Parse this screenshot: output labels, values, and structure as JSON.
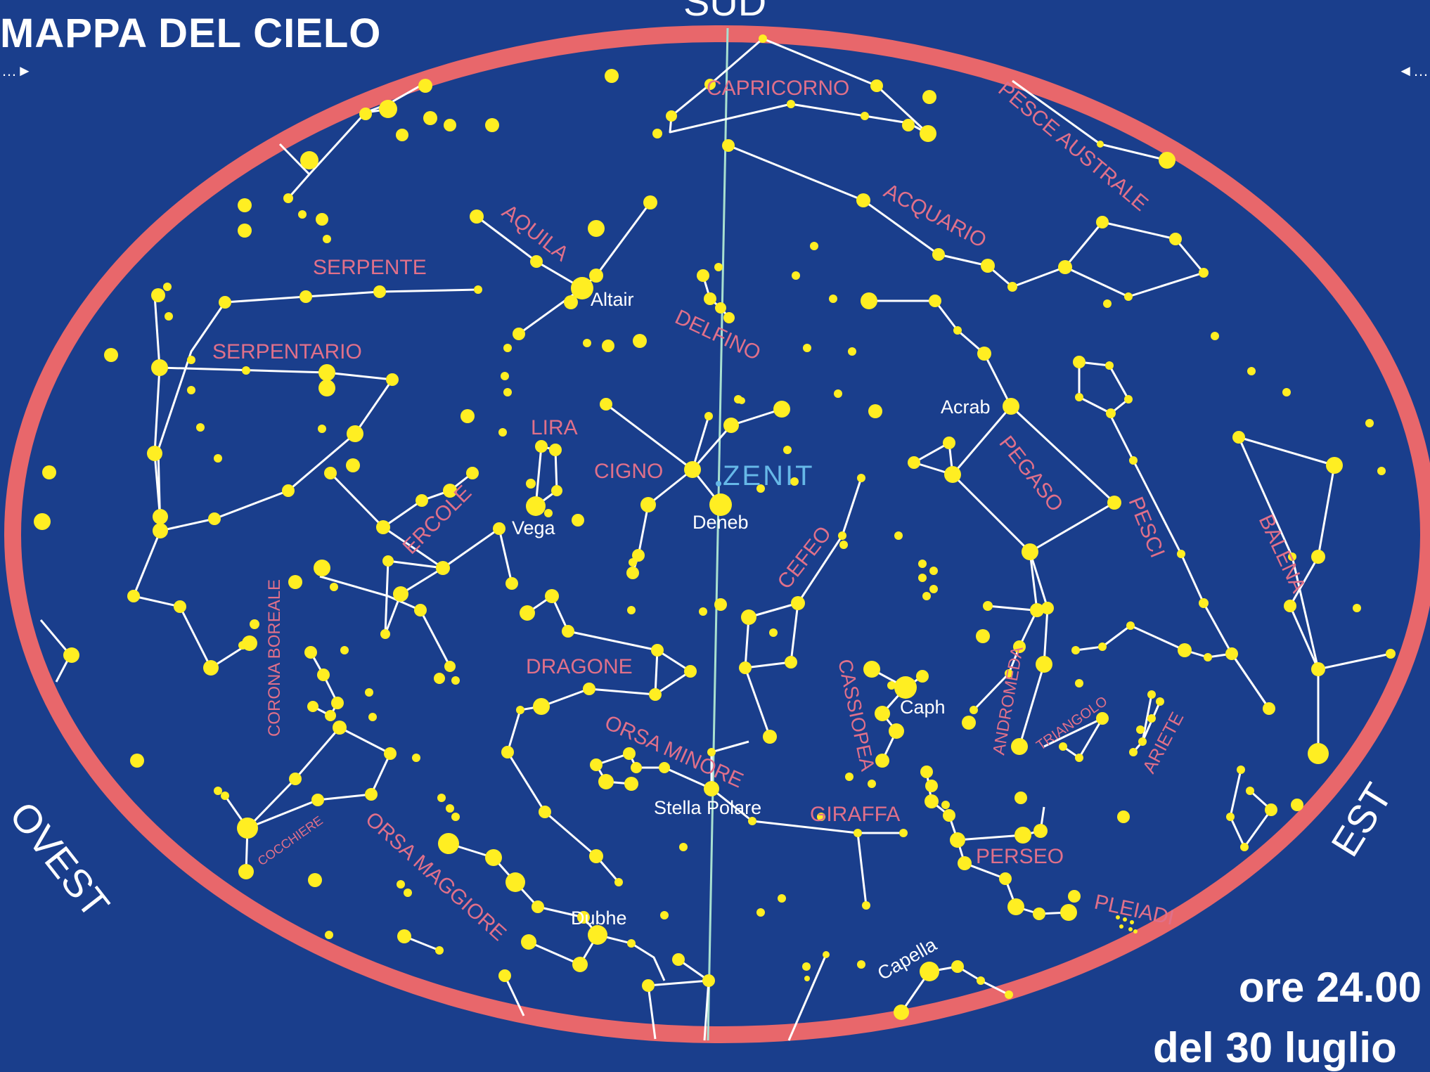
{
  "title": "MAPPA DEL CIELO",
  "directions": {
    "south": "SUD",
    "west": "OVEST",
    "east": "EST"
  },
  "time": "ore 24.00",
  "date": "del 30 luglio",
  "zenith_label": "ZENIT",
  "colors": {
    "background": "#1a3e8c",
    "horizon": "#e8676b",
    "stars": "#ffee22",
    "lines": "#ffffff",
    "constellation_labels": "#e0708a",
    "meridian": "#a8e0d0",
    "zenith": "#66b8e8"
  },
  "constellations": {
    "capricorno": "CAPRICORNO",
    "pesce_australe": "PESCE AUSTRALE",
    "acquario": "ACQUARIO",
    "aquila": "AQUILA",
    "serpente": "SERPENTE",
    "serpentario": "SERPENTARIO",
    "delfino": "DELFINO",
    "lira": "LIRA",
    "cigno": "CIGNO",
    "ercole": "ERCOLE",
    "pegaso": "PEGASO",
    "pesci": "PESCI",
    "balena": "BALENA",
    "cefeo": "CEFEO",
    "dragone": "DRAGONE",
    "corona_boreale": "CORONA BOREALE",
    "cassiopea": "CASSIOPEA",
    "andromeda": "ANDROMEDA",
    "triangolo": "TRIANGOLO",
    "ariete": "ARIETE",
    "orsa_minore": "ORSA MINORE",
    "giraffa": "GIRAFFA",
    "perseo": "PERSEO",
    "cocchiere": "COCCHIERE",
    "orsa_maggiore": "ORSA MAGGIORE",
    "pleiadi": "PLEIADI"
  },
  "stars": {
    "altair": "Altair",
    "acrab": "Acrab",
    "vega": "Vega",
    "deneb": "Deneb",
    "caph": "Caph",
    "stella_polare": "Stella Polare",
    "dubhe": "Dubhe",
    "capella": "Capella"
  }
}
